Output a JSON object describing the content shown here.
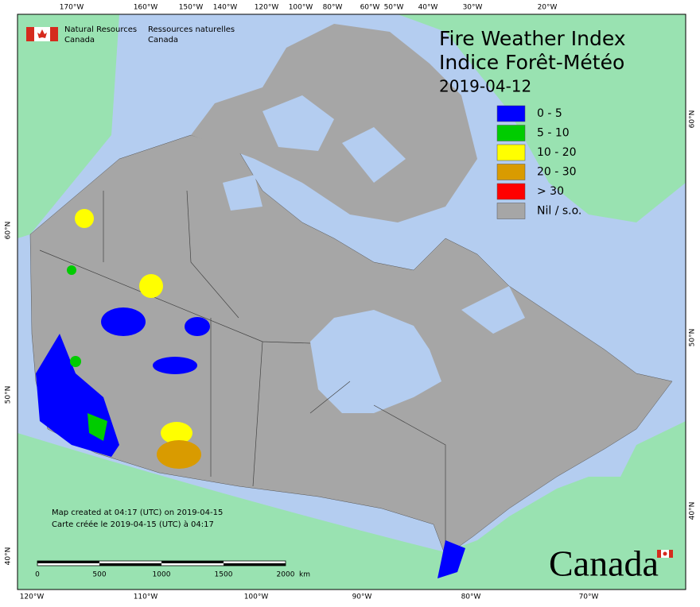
{
  "header": {
    "org_en": [
      "Natural Resources",
      "Canada"
    ],
    "org_fr": [
      "Ressources naturelles",
      "Canada"
    ]
  },
  "title": [
    "Fire Weather Index",
    "Indice Forêt-Météo"
  ],
  "date": "2019-04-12",
  "legend": [
    {
      "label": "0 - 5",
      "color": "#0000ff"
    },
    {
      "label": "5 - 10",
      "color": "#00cc00"
    },
    {
      "label": "10 - 20",
      "color": "#ffff00"
    },
    {
      "label": "20 - 30",
      "color": "#d99b00"
    },
    {
      "label": "> 30",
      "color": "#ff0000"
    },
    {
      "label": "Nil / s.o.",
      "color": "#a6a6a6"
    }
  ],
  "top_longitudes": [
    "170°W",
    "160°W",
    "150°W",
    "140°W",
    "120°W",
    "100°W",
    "80°W",
    "60°W",
    "50°W",
    "40°W",
    "30°W",
    "20°W"
  ],
  "bottom_longitudes": [
    "120°W",
    "110°W",
    "100°W",
    "90°W",
    "80°W",
    "70°W"
  ],
  "left_latitudes": [
    "60°N",
    "50°N",
    "40°N"
  ],
  "right_latitudes": [
    "60°N",
    "50°N",
    "40°N"
  ],
  "footer": [
    "Map created at 04:17 (UTC) on 2019-04-15",
    "Carte créée le 2019-04-15 (UTC) à 04:17"
  ],
  "scale_bar": {
    "ticks": [
      0,
      500,
      1000,
      1500,
      2000
    ],
    "unit": "km"
  },
  "wordmark": "Canada"
}
